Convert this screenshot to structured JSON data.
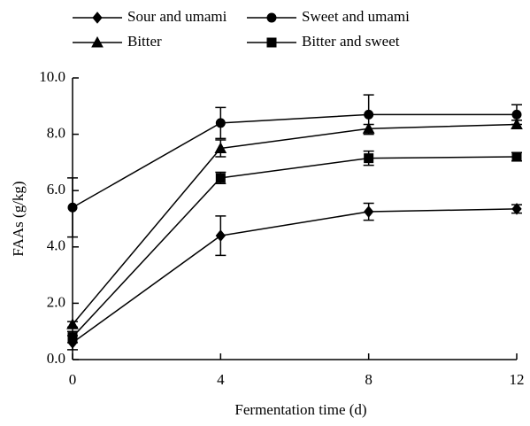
{
  "chart_data": {
    "type": "line",
    "x_label": "Fermentation time (d)",
    "y_label": "FAAs (g/kg)",
    "x": [
      0,
      4,
      8,
      12
    ],
    "xlim": [
      0,
      12
    ],
    "xticks": [
      0,
      4,
      8,
      12
    ],
    "ylim": [
      0,
      10
    ],
    "yticks": [
      {
        "value": 0,
        "label": "0.0"
      },
      {
        "value": 2,
        "label": "2.0"
      },
      {
        "value": 4,
        "label": "4.0"
      },
      {
        "value": 6,
        "label": "6.0"
      },
      {
        "value": 8,
        "label": "8.0"
      },
      {
        "value": 10,
        "label": "10.0"
      }
    ],
    "series": [
      {
        "name": "Sour and umami",
        "color": "#000000",
        "marker": "diamond",
        "values": [
          0.6,
          4.4,
          5.25,
          5.35
        ],
        "errors": [
          0.25,
          0.7,
          0.3,
          0.15
        ]
      },
      {
        "name": "Sweet and umami",
        "color": "#000000",
        "marker": "circle",
        "values": [
          5.4,
          8.4,
          8.7,
          8.7
        ],
        "errors": [
          1.05,
          0.55,
          0.7,
          0.35
        ]
      },
      {
        "name": "Bitter",
        "color": "#000000",
        "marker": "triangle",
        "values": [
          1.25,
          7.5,
          8.2,
          8.35
        ],
        "errors": [
          0.1,
          0.3,
          0.15,
          0.15
        ]
      },
      {
        "name": "Bitter and sweet",
        "color": "#000000",
        "marker": "square",
        "values": [
          0.8,
          6.45,
          7.15,
          7.2
        ],
        "errors": [
          0.2,
          0.2,
          0.25,
          0.15
        ]
      }
    ]
  }
}
